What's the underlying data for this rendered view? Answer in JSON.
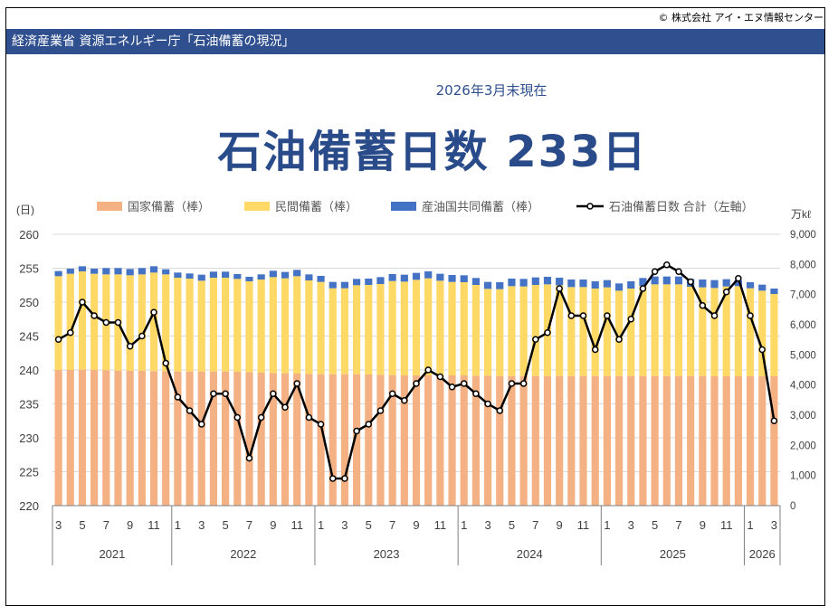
{
  "copyright": "© 株式会社 アイ・エヌ情報センター",
  "header_title": "経済産業省 資源エネルギー庁「石油備蓄の現況」",
  "as_of": "2026年3月末現在",
  "headline": "石油備蓄日数 233日",
  "colors": {
    "header_bg": "#2f4f8f",
    "state": "#f4b183",
    "private": "#ffd966",
    "jointly": "#4472c4",
    "line": "#000000",
    "headline": "#2a4b8a"
  },
  "chart_data": {
    "type": "bar",
    "stacked": true,
    "left_axis": {
      "unit": "(日)",
      "min": 220,
      "max": 260,
      "ticks": [
        220,
        225,
        230,
        235,
        240,
        245,
        250,
        255,
        260
      ]
    },
    "right_axis": {
      "unit": "万kℓ",
      "min": 0,
      "max": 9000,
      "ticks": [
        "0",
        "1,000",
        "2,000",
        "3,000",
        "4,000",
        "5,000",
        "6,000",
        "7,000",
        "8,000",
        "9,000"
      ]
    },
    "legend": [
      "国家備蓄（棒）",
      "民間備蓄（棒）",
      "産油国共同備蓄（棒）",
      "石油備蓄日数 合計（左軸）"
    ],
    "legend_position": "top",
    "grid": "horizontal",
    "month_labels": [
      "3",
      "5",
      "7",
      "9",
      "11",
      "1",
      "3",
      "5",
      "7",
      "9",
      "11",
      "1",
      "3",
      "5",
      "7",
      "9",
      "11",
      "1",
      "3",
      "5",
      "7",
      "9",
      "11",
      "1",
      "3",
      "5",
      "7",
      "9",
      "11",
      "1",
      "3"
    ],
    "years": [
      "2021",
      "2022",
      "2023",
      "2024",
      "2025",
      "2026"
    ],
    "x": [
      "2021-03",
      "2021-04",
      "2021-05",
      "2021-06",
      "2021-07",
      "2021-08",
      "2021-09",
      "2021-10",
      "2021-11",
      "2021-12",
      "2022-01",
      "2022-02",
      "2022-03",
      "2022-04",
      "2022-05",
      "2022-06",
      "2022-07",
      "2022-08",
      "2022-09",
      "2022-10",
      "2022-11",
      "2022-12",
      "2023-01",
      "2023-02",
      "2023-03",
      "2023-04",
      "2023-05",
      "2023-06",
      "2023-07",
      "2023-08",
      "2023-09",
      "2023-10",
      "2023-11",
      "2023-12",
      "2024-01",
      "2024-02",
      "2024-03",
      "2024-04",
      "2024-05",
      "2024-06",
      "2024-07",
      "2024-08",
      "2024-09",
      "2024-10",
      "2024-11",
      "2024-12",
      "2025-01",
      "2025-02",
      "2025-03",
      "2025-04",
      "2025-05",
      "2025-06",
      "2025-07",
      "2025-08",
      "2025-09",
      "2025-10",
      "2025-11",
      "2025-12",
      "2026-01",
      "2026-02",
      "2026-03"
    ],
    "series": [
      {
        "name": "国家備蓄（棒）",
        "axis": "right",
        "values": [
          4500,
          4500,
          4510,
          4500,
          4490,
          4480,
          4470,
          4470,
          4460,
          4460,
          4450,
          4450,
          4450,
          4450,
          4450,
          4440,
          4430,
          4410,
          4400,
          4390,
          4380,
          4370,
          4360,
          4360,
          4360,
          4360,
          4350,
          4340,
          4330,
          4320,
          4320,
          4320,
          4320,
          4320,
          4320,
          4310,
          4310,
          4300,
          4300,
          4300,
          4300,
          4300,
          4300,
          4300,
          4300,
          4300,
          4300,
          4300,
          4300,
          4300,
          4300,
          4300,
          4300,
          4300,
          4300,
          4290,
          4290,
          4290,
          4290,
          4290,
          4290
        ]
      },
      {
        "name": "民間備蓄（棒）",
        "axis": "right",
        "values": [
          3110,
          3190,
          3260,
          3190,
          3180,
          3190,
          3170,
          3200,
          3270,
          3210,
          3110,
          3080,
          3010,
          3110,
          3110,
          3080,
          3010,
          3090,
          3180,
          3150,
          3230,
          3100,
          3060,
          2850,
          2850,
          2950,
          2970,
          3010,
          3120,
          3110,
          3170,
          3220,
          3140,
          3100,
          3090,
          3010,
          2880,
          2880,
          2980,
          2970,
          3020,
          3040,
          3010,
          2950,
          2950,
          2900,
          2940,
          2830,
          2900,
          2990,
          3040,
          3040,
          3040,
          2960,
          2940,
          2930,
          2980,
          2990,
          2920,
          2840,
          2730
        ]
      },
      {
        "name": "産油国共同備蓄（棒）",
        "axis": "right",
        "values": [
          170,
          170,
          170,
          170,
          210,
          210,
          210,
          210,
          210,
          170,
          170,
          170,
          200,
          200,
          200,
          160,
          150,
          170,
          210,
          210,
          210,
          200,
          200,
          210,
          210,
          210,
          210,
          230,
          230,
          230,
          230,
          230,
          230,
          230,
          230,
          230,
          230,
          230,
          250,
          250,
          250,
          250,
          250,
          250,
          250,
          240,
          240,
          240,
          240,
          260,
          260,
          260,
          260,
          260,
          260,
          260,
          240,
          200,
          200,
          200,
          180
        ]
      },
      {
        "name": "石油備蓄日数 合計（左軸）",
        "axis": "left",
        "type": "line",
        "values": [
          244.5,
          245.5,
          250,
          248,
          247,
          247,
          243.5,
          245,
          248.5,
          241,
          236,
          234,
          232,
          236.5,
          236.5,
          233,
          227,
          233,
          236.5,
          234.5,
          238,
          233,
          232,
          224,
          224,
          231,
          232,
          234,
          236.5,
          235.5,
          238,
          240,
          239,
          237.5,
          238,
          236.5,
          235,
          234,
          238,
          238,
          244.5,
          245.5,
          252,
          248,
          248,
          243,
          248,
          244.5,
          247.5,
          252,
          254.5,
          255.5,
          254.5,
          253,
          249.5,
          248,
          251.5,
          253.5,
          248,
          243,
          232.5
        ]
      }
    ]
  }
}
